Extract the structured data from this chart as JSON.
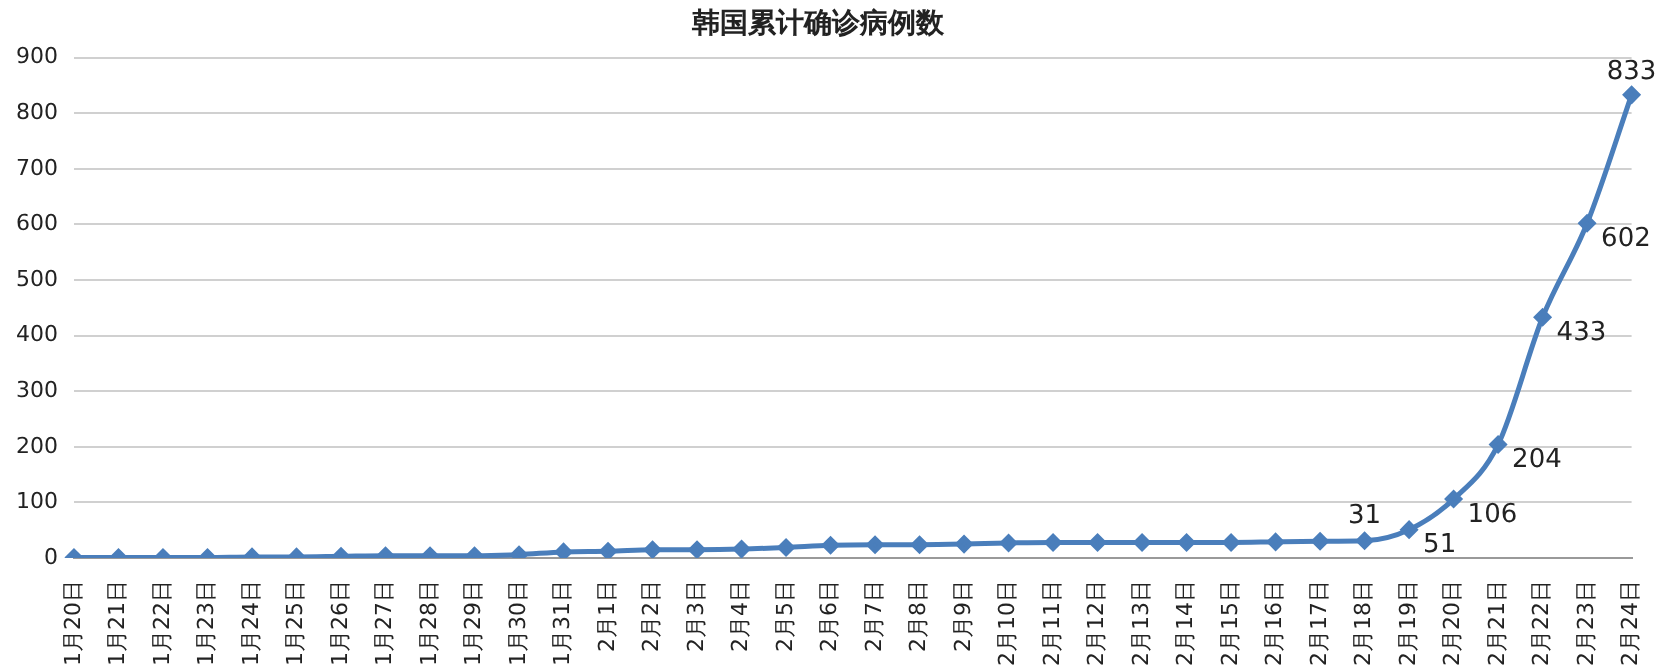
{
  "chart_data": {
    "type": "line",
    "title": "韩国累计确诊病例数",
    "categories": [
      "1月20日",
      "1月21日",
      "1月22日",
      "1月23日",
      "1月24日",
      "1月25日",
      "1月26日",
      "1月27日",
      "1月28日",
      "1月29日",
      "1月30日",
      "1月31日",
      "2月1日",
      "2月2日",
      "2月3日",
      "2月4日",
      "2月5日",
      "2月6日",
      "2月7日",
      "2月8日",
      "2月9日",
      "2月10日",
      "2月11日",
      "2月12日",
      "2月13日",
      "2月14日",
      "2月15日",
      "2月16日",
      "2月17日",
      "2月18日",
      "2月19日",
      "2月20日",
      "2月21日",
      "2月22日",
      "2月23日",
      "2月24日"
    ],
    "series": [
      {
        "color": "#4a7ebb",
        "values": [
          1,
          1,
          1,
          1,
          2,
          2,
          3,
          4,
          4,
          4,
          6,
          11,
          12,
          15,
          15,
          16,
          19,
          23,
          24,
          24,
          25,
          27,
          28,
          28,
          28,
          28,
          28,
          29,
          30,
          31,
          51,
          106,
          204,
          433,
          602,
          833
        ],
        "value_labels": [
          null,
          null,
          null,
          null,
          null,
          null,
          null,
          null,
          null,
          null,
          null,
          null,
          null,
          null,
          null,
          null,
          null,
          null,
          null,
          null,
          null,
          null,
          null,
          null,
          null,
          null,
          null,
          null,
          null,
          "31",
          "51",
          "106",
          "204",
          "433",
          "602",
          "833"
        ]
      }
    ],
    "ylim": [
      0,
      900
    ],
    "yticks": [
      0,
      100,
      200,
      300,
      400,
      500,
      600,
      700,
      800,
      900
    ],
    "grid": "y",
    "legend": false,
    "marker": "diamond",
    "line_style": "solid"
  }
}
